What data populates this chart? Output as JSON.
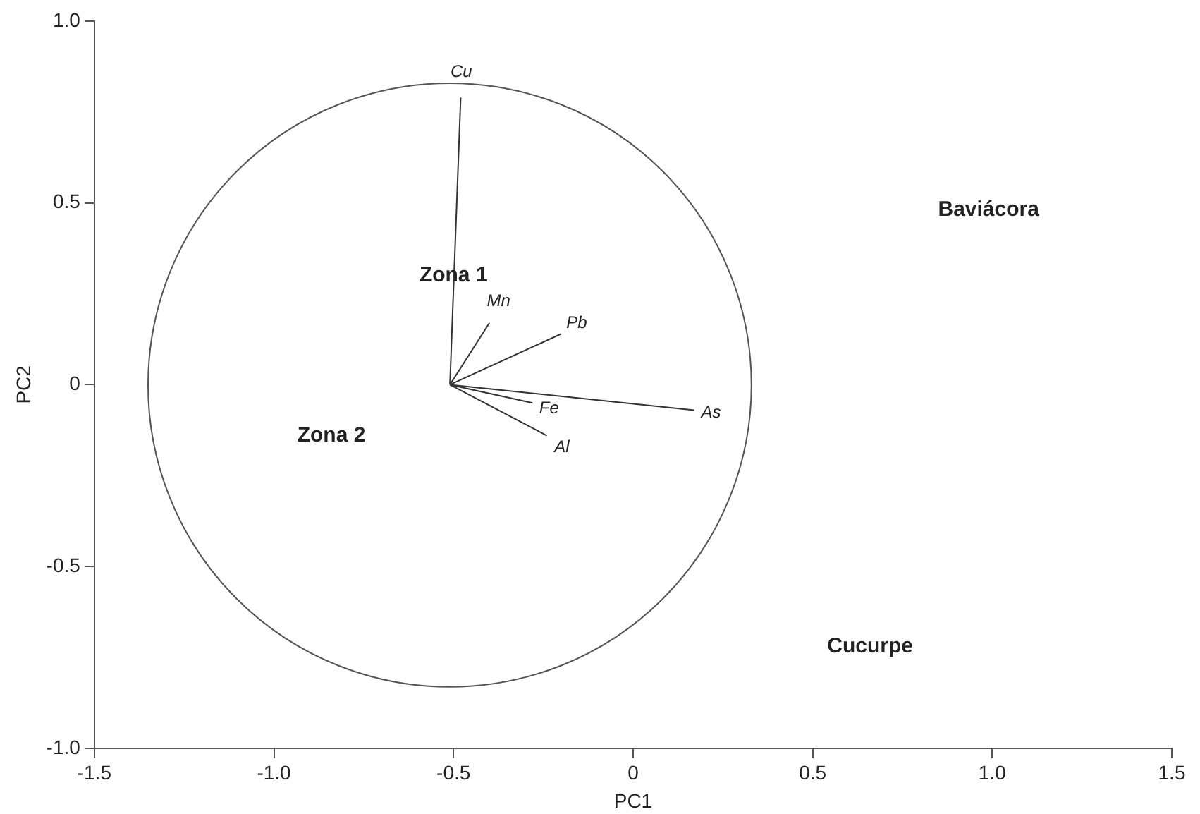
{
  "chart_data": {
    "type": "line",
    "xlabel": "PC1",
    "ylabel": "PC2",
    "xlim": [
      -1.5,
      1.5
    ],
    "xticks": [
      -1.5,
      {
        "value": -1,
        "label": "-1.0"
      },
      -0.5,
      0,
      0.5,
      {
        "value": 1,
        "label": "1.0"
      },
      1.5
    ],
    "ylim": [
      -1.0,
      1.0
    ],
    "yticks": [
      {
        "value": -1,
        "label": "-1.0"
      },
      -0.5,
      0,
      0.5,
      {
        "value": 1,
        "label": "1.0"
      }
    ],
    "grid": false,
    "legend": false,
    "marker": "none",
    "line_style": "solid",
    "series": [
      {
        "name": "Cu",
        "color": "#333333",
        "x": [
          -0.51,
          -0.48
        ],
        "values": [
          0,
          0.79
        ]
      },
      {
        "name": "Mn",
        "color": "#333333",
        "x": [
          -0.51,
          -0.4
        ],
        "values": [
          0,
          0.17
        ]
      },
      {
        "name": "Pb",
        "color": "#333333",
        "x": [
          -0.51,
          -0.2
        ],
        "values": [
          0,
          0.14
        ]
      },
      {
        "name": "As",
        "color": "#333333",
        "x": [
          -0.51,
          0.17
        ],
        "values": [
          0,
          -0.07
        ]
      },
      {
        "name": "Fe",
        "color": "#333333",
        "x": [
          -0.51,
          -0.28
        ],
        "values": [
          0,
          -0.05
        ]
      },
      {
        "name": "Al",
        "color": "#333333",
        "x": [
          -0.51,
          -0.24
        ],
        "values": [
          0,
          -0.14
        ]
      }
    ],
    "annotations": [
      {
        "text": "Zona 1",
        "x": -0.5,
        "y": 0.3
      },
      "Zona 2",
      "Baviácora",
      "Cucurpe"
    ]
  }
}
